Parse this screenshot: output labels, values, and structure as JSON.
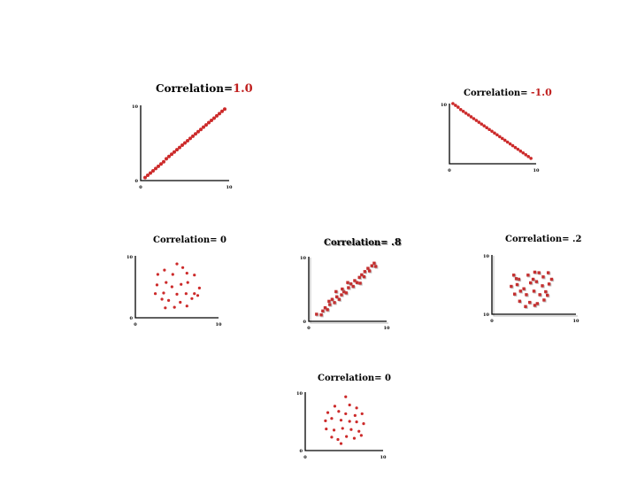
{
  "chart_data": [
    {
      "type": "scatter",
      "title_prefix": "Correlation=",
      "title_value": "1.0",
      "x_ticks": [
        "0",
        "10"
      ],
      "y_ticks": [
        "0",
        "10"
      ],
      "xlim": [
        0,
        10
      ],
      "ylim": [
        0,
        10
      ],
      "marker": "circle",
      "color": "#cc2a2a",
      "points": [
        [
          0.5,
          0.4
        ],
        [
          0.8,
          0.7
        ],
        [
          1.1,
          1.0
        ],
        [
          1.4,
          1.3
        ],
        [
          1.7,
          1.6
        ],
        [
          2.0,
          1.9
        ],
        [
          2.3,
          2.2
        ],
        [
          2.6,
          2.5
        ],
        [
          2.9,
          2.9
        ],
        [
          3.2,
          3.2
        ],
        [
          3.5,
          3.5
        ],
        [
          3.8,
          3.8
        ],
        [
          4.1,
          4.1
        ],
        [
          4.4,
          4.4
        ],
        [
          4.7,
          4.7
        ],
        [
          5.0,
          5.0
        ],
        [
          5.3,
          5.3
        ],
        [
          5.6,
          5.6
        ],
        [
          5.9,
          5.9
        ],
        [
          6.2,
          6.2
        ],
        [
          6.5,
          6.5
        ],
        [
          6.8,
          6.8
        ],
        [
          7.1,
          7.1
        ],
        [
          7.4,
          7.4
        ],
        [
          7.7,
          7.7
        ],
        [
          8.0,
          8.0
        ],
        [
          8.3,
          8.3
        ],
        [
          8.6,
          8.6
        ],
        [
          8.9,
          8.9
        ],
        [
          9.2,
          9.2
        ],
        [
          9.5,
          9.5
        ]
      ]
    },
    {
      "type": "scatter",
      "title_prefix": "Correlation= ",
      "title_value": "-1.0",
      "x_ticks": [
        "0",
        "10"
      ],
      "y_ticks": [
        "10",
        ""
      ],
      "xlim": [
        0,
        10
      ],
      "ylim": [
        0,
        10
      ],
      "marker": "circle",
      "color": "#cc2a2a",
      "points": [
        [
          0.4,
          10.0
        ],
        [
          0.7,
          9.7
        ],
        [
          1.0,
          9.4
        ],
        [
          1.3,
          9.0
        ],
        [
          1.6,
          8.7
        ],
        [
          1.9,
          8.4
        ],
        [
          2.2,
          8.1
        ],
        [
          2.5,
          7.8
        ],
        [
          2.8,
          7.5
        ],
        [
          3.1,
          7.2
        ],
        [
          3.4,
          6.9
        ],
        [
          3.7,
          6.6
        ],
        [
          4.0,
          6.3
        ],
        [
          4.3,
          6.0
        ],
        [
          4.6,
          5.7
        ],
        [
          4.9,
          5.4
        ],
        [
          5.2,
          5.1
        ],
        [
          5.5,
          4.8
        ],
        [
          5.8,
          4.5
        ],
        [
          6.1,
          4.2
        ],
        [
          6.4,
          3.9
        ],
        [
          6.7,
          3.6
        ],
        [
          7.0,
          3.3
        ],
        [
          7.3,
          3.0
        ],
        [
          7.6,
          2.7
        ],
        [
          7.9,
          2.4
        ],
        [
          8.2,
          2.1
        ],
        [
          8.5,
          1.8
        ],
        [
          8.8,
          1.5
        ],
        [
          9.1,
          1.2
        ],
        [
          9.4,
          0.9
        ]
      ]
    },
    {
      "type": "scatter",
      "title_prefix": "Correlation= ",
      "title_value": "0",
      "x_ticks": [
        "0",
        "10"
      ],
      "y_ticks": [
        "0",
        "10"
      ],
      "xlim": [
        0,
        10
      ],
      "ylim": [
        0,
        10
      ],
      "marker": "circle",
      "color": "#cc2a2a",
      "points": [
        [
          5.0,
          8.7
        ],
        [
          3.5,
          7.7
        ],
        [
          5.7,
          8.1
        ],
        [
          2.7,
          7.0
        ],
        [
          4.5,
          7.0
        ],
        [
          6.2,
          7.2
        ],
        [
          7.1,
          6.9
        ],
        [
          2.6,
          5.3
        ],
        [
          3.7,
          5.7
        ],
        [
          4.4,
          5.0
        ],
        [
          5.5,
          5.4
        ],
        [
          6.3,
          5.7
        ],
        [
          7.7,
          4.8
        ],
        [
          2.4,
          3.9
        ],
        [
          3.4,
          4.0
        ],
        [
          5.0,
          3.8
        ],
        [
          6.1,
          3.9
        ],
        [
          7.1,
          3.9
        ],
        [
          3.2,
          3.0
        ],
        [
          4.0,
          2.8
        ],
        [
          5.4,
          2.5
        ],
        [
          6.8,
          3.1
        ],
        [
          3.6,
          1.6
        ],
        [
          4.7,
          1.7
        ],
        [
          6.2,
          1.9
        ],
        [
          7.5,
          3.6
        ]
      ]
    },
    {
      "type": "scatter",
      "title_prefix": "Correlation= ",
      "title_value": ".8",
      "x_ticks": [
        "0",
        "10"
      ],
      "y_ticks": [
        "0",
        "10"
      ],
      "xlim": [
        0,
        10
      ],
      "ylim": [
        0,
        10
      ],
      "marker": "square",
      "color": "#c43030",
      "points": [
        [
          1.0,
          1.1
        ],
        [
          1.6,
          1.0
        ],
        [
          1.8,
          1.6
        ],
        [
          2.1,
          2.1
        ],
        [
          2.4,
          1.8
        ],
        [
          2.7,
          2.6
        ],
        [
          2.6,
          3.1
        ],
        [
          3.0,
          3.4
        ],
        [
          3.3,
          2.9
        ],
        [
          3.6,
          3.8
        ],
        [
          3.9,
          3.4
        ],
        [
          4.2,
          4.1
        ],
        [
          4.5,
          4.6
        ],
        [
          4.3,
          5.0
        ],
        [
          4.8,
          4.4
        ],
        [
          5.1,
          5.2
        ],
        [
          5.4,
          5.8
        ],
        [
          5.7,
          5.4
        ],
        [
          5.9,
          6.3
        ],
        [
          6.2,
          6.0
        ],
        [
          6.5,
          6.8
        ],
        [
          6.8,
          7.2
        ],
        [
          7.1,
          6.9
        ],
        [
          7.2,
          7.7
        ],
        [
          7.6,
          8.2
        ],
        [
          7.8,
          7.8
        ],
        [
          8.1,
          8.6
        ],
        [
          8.4,
          9.0
        ],
        [
          8.6,
          8.5
        ],
        [
          5.0,
          6.0
        ],
        [
          3.5,
          4.6
        ],
        [
          6.6,
          5.9
        ]
      ]
    },
    {
      "type": "scatter",
      "title_prefix": "Correlation= ",
      "title_value": ".2",
      "x_ticks": [
        "0",
        "10"
      ],
      "y_ticks": [
        "10",
        "10"
      ],
      "xlim": [
        0,
        10
      ],
      "ylim": [
        0,
        10
      ],
      "marker": "square",
      "color": "#c43030",
      "points": [
        [
          2.6,
          6.6
        ],
        [
          3.2,
          5.9
        ],
        [
          4.3,
          6.6
        ],
        [
          5.1,
          7.1
        ],
        [
          5.6,
          7.0
        ],
        [
          6.1,
          6.3
        ],
        [
          6.7,
          7.0
        ],
        [
          2.3,
          4.7
        ],
        [
          3.0,
          5.0
        ],
        [
          3.8,
          4.3
        ],
        [
          4.6,
          5.3
        ],
        [
          5.3,
          5.5
        ],
        [
          6.0,
          4.8
        ],
        [
          6.8,
          5.1
        ],
        [
          2.7,
          3.4
        ],
        [
          3.4,
          3.9
        ],
        [
          4.1,
          3.3
        ],
        [
          5.0,
          3.9
        ],
        [
          5.7,
          3.3
        ],
        [
          6.4,
          3.8
        ],
        [
          3.3,
          2.2
        ],
        [
          4.5,
          2.0
        ],
        [
          5.4,
          1.8
        ],
        [
          6.2,
          2.4
        ],
        [
          4.0,
          1.3
        ],
        [
          5.1,
          1.5
        ],
        [
          7.1,
          5.9
        ],
        [
          2.9,
          6.0
        ],
        [
          4.9,
          5.9
        ],
        [
          6.6,
          3.2
        ]
      ]
    },
    {
      "type": "scatter",
      "title_prefix": "Correlation= ",
      "title_value": "0",
      "x_ticks": [
        "0",
        "10"
      ],
      "y_ticks": [
        "0",
        "10"
      ],
      "xlim": [
        0,
        10
      ],
      "ylim": [
        0,
        10
      ],
      "marker": "circle",
      "color": "#cc2a2a",
      "points": [
        [
          5.2,
          9.2
        ],
        [
          3.8,
          7.6
        ],
        [
          5.7,
          7.8
        ],
        [
          6.6,
          7.3
        ],
        [
          2.9,
          6.5
        ],
        [
          4.3,
          6.7
        ],
        [
          5.2,
          6.3
        ],
        [
          6.4,
          6.0
        ],
        [
          7.3,
          6.3
        ],
        [
          2.6,
          5.1
        ],
        [
          3.4,
          5.5
        ],
        [
          4.6,
          5.2
        ],
        [
          5.7,
          5.0
        ],
        [
          6.6,
          4.9
        ],
        [
          7.5,
          4.6
        ],
        [
          2.7,
          3.7
        ],
        [
          3.7,
          3.5
        ],
        [
          4.8,
          3.8
        ],
        [
          5.9,
          3.6
        ],
        [
          6.9,
          3.3
        ],
        [
          3.4,
          2.3
        ],
        [
          4.2,
          1.9
        ],
        [
          5.3,
          2.4
        ],
        [
          6.3,
          2.1
        ],
        [
          4.6,
          1.2
        ],
        [
          7.2,
          2.6
        ]
      ]
    }
  ]
}
